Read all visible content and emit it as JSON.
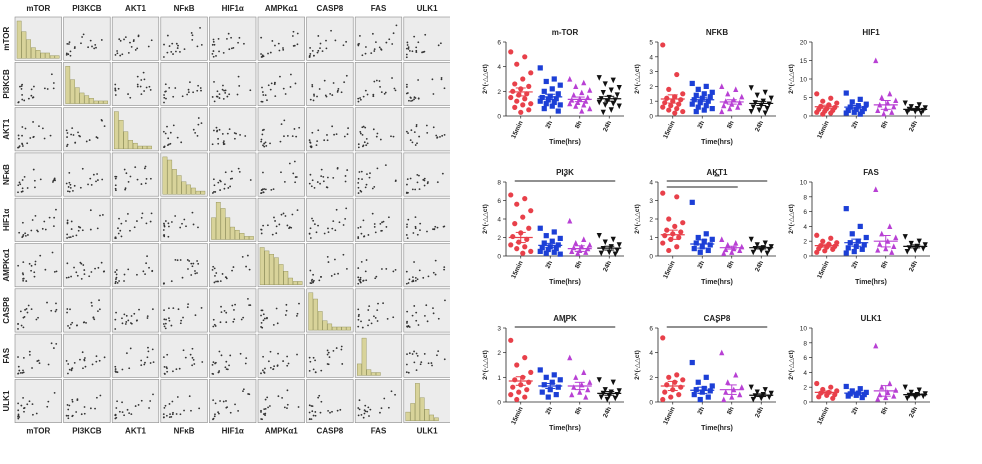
{
  "scatter_matrix": {
    "variables": [
      "mTOR",
      "PI3KCB",
      "AKT1",
      "NFκB",
      "HIF1α",
      "AMPKα1",
      "CASP8",
      "FAS",
      "ULK1"
    ],
    "histograms": [
      [
        14,
        10,
        7,
        4,
        3,
        2,
        2,
        1,
        1
      ],
      [
        14,
        9,
        6,
        4,
        3,
        2,
        1,
        1,
        1
      ],
      [
        13,
        10,
        6,
        3,
        2,
        1,
        1,
        1,
        0
      ],
      [
        12,
        11,
        8,
        6,
        4,
        3,
        2,
        1,
        1
      ],
      [
        7,
        12,
        10,
        7,
        4,
        3,
        2,
        1,
        1
      ],
      [
        11,
        10,
        9,
        8,
        6,
        4,
        2,
        1,
        1
      ],
      [
        12,
        10,
        6,
        3,
        2,
        1,
        1,
        1,
        1
      ],
      [
        4,
        13,
        2,
        1,
        1,
        0,
        0,
        0,
        0
      ],
      [
        3,
        6,
        13,
        8,
        4,
        2,
        1,
        0,
        0
      ]
    ],
    "hist_color": "#d8d39a"
  },
  "dot_plot_ylabel": "2^(-△△ct)",
  "chart_data": [
    {
      "type": "scatter",
      "title": "m-TOR",
      "xlabel": "Time(hrs)",
      "ylabel": "2^(-△△ct)",
      "categories": [
        "15min",
        "2h",
        "8h",
        "24h"
      ],
      "ylim": [
        0,
        6
      ],
      "yticks": [
        0,
        2,
        4,
        6
      ],
      "significance": [],
      "series": [
        {
          "values": [
            5.2,
            4.8,
            4.2,
            3.5,
            3.0,
            2.6,
            2.4,
            2.2,
            2.0,
            1.8,
            1.7,
            1.5,
            1.4,
            1.2,
            1.0,
            0.9,
            0.7,
            0.5,
            0.3
          ],
          "mean": 1.95,
          "color": "#e8404a",
          "marker": "circle"
        },
        {
          "values": [
            3.9,
            3.0,
            2.8,
            2.5,
            2.2,
            2.0,
            1.8,
            1.6,
            1.5,
            1.4,
            1.3,
            1.2,
            1.1,
            1.0,
            0.9,
            0.8,
            0.6,
            0.4
          ],
          "mean": 1.55,
          "color": "#1c3fd6",
          "marker": "square"
        },
        {
          "values": [
            3.0,
            2.7,
            2.4,
            2.1,
            1.9,
            1.7,
            1.5,
            1.4,
            1.3,
            1.2,
            1.1,
            1.0,
            0.9,
            0.8,
            0.6,
            0.4
          ],
          "mean": 1.35,
          "color": "#b840d4",
          "marker": "triangle"
        },
        {
          "values": [
            3.1,
            2.9,
            2.6,
            2.3,
            2.1,
            1.9,
            1.7,
            1.5,
            1.4,
            1.3,
            1.2,
            1.1,
            1.0,
            0.9,
            0.8,
            0.5,
            0.3
          ],
          "mean": 1.4,
          "color": "#111111",
          "marker": "tri-down"
        }
      ]
    },
    {
      "type": "scatter",
      "title": "NFKB",
      "xlabel": "Time(hrs)",
      "ylabel": "2^(-△△ct)",
      "categories": [
        "15min",
        "2h",
        "8h",
        "24h"
      ],
      "ylim": [
        0,
        5
      ],
      "yticks": [
        0,
        1,
        2,
        3,
        4,
        5
      ],
      "significance": [],
      "series": [
        {
          "values": [
            4.8,
            2.8,
            1.8,
            1.5,
            1.3,
            1.2,
            1.1,
            1.0,
            0.9,
            0.8,
            0.7,
            0.6,
            0.5,
            0.4,
            0.3,
            0.2
          ],
          "mean": 1.15,
          "color": "#e8404a",
          "marker": "circle"
        },
        {
          "values": [
            2.2,
            2.0,
            1.8,
            1.6,
            1.5,
            1.4,
            1.3,
            1.2,
            1.1,
            1.0,
            0.9,
            0.8,
            0.7,
            0.6,
            0.5,
            0.4,
            0.3
          ],
          "mean": 1.1,
          "color": "#1c3fd6",
          "marker": "square"
        },
        {
          "values": [
            2.0,
            1.8,
            1.5,
            1.3,
            1.1,
            1.0,
            0.9,
            0.8,
            0.7,
            0.6,
            0.5,
            0.3
          ],
          "mean": 0.95,
          "color": "#b840d4",
          "marker": "triangle"
        },
        {
          "values": [
            1.9,
            1.6,
            1.4,
            1.2,
            1.0,
            0.9,
            0.8,
            0.7,
            0.6,
            0.5,
            0.4,
            0.3,
            0.2
          ],
          "mean": 0.85,
          "color": "#111111",
          "marker": "tri-down"
        }
      ]
    },
    {
      "type": "scatter",
      "title": "HIF1",
      "xlabel": "",
      "ylabel": "2^(-△△ct)",
      "categories": [
        "15min",
        "2h",
        "8h",
        "24h"
      ],
      "ylim": [
        0,
        20
      ],
      "yticks": [
        0,
        5,
        10,
        15,
        20
      ],
      "significance": [],
      "series": [
        {
          "values": [
            6.0,
            4.8,
            4.0,
            3.5,
            3.0,
            2.6,
            2.3,
            2.0,
            1.8,
            1.5,
            1.3,
            1.0,
            0.8,
            0.5
          ],
          "mean": 2.5,
          "color": "#e8404a",
          "marker": "circle"
        },
        {
          "values": [
            6.2,
            4.5,
            3.8,
            3.2,
            2.8,
            2.4,
            2.0,
            1.8,
            1.5,
            1.2,
            1.0,
            0.8,
            0.5
          ],
          "mean": 2.4,
          "color": "#1c3fd6",
          "marker": "square"
        },
        {
          "values": [
            15.0,
            6.0,
            5.0,
            4.2,
            3.5,
            3.0,
            2.5,
            2.0,
            1.5,
            1.0,
            0.6
          ],
          "mean": 3.0,
          "color": "#b840d4",
          "marker": "triangle"
        },
        {
          "values": [
            3.5,
            3.0,
            2.5,
            2.2,
            2.0,
            1.8,
            1.5,
            1.2,
            1.0,
            0.8
          ],
          "mean": 1.8,
          "color": "#111111",
          "marker": "tri-down"
        }
      ]
    },
    {
      "type": "scatter",
      "title": "PI3K",
      "xlabel": "Time(hrs)",
      "ylabel": "2^(-△△ct)",
      "categories": [
        "15min",
        "2h",
        "8h",
        "24h"
      ],
      "ylim": [
        0,
        8
      ],
      "yticks": [
        0,
        2,
        4,
        6,
        8
      ],
      "significance": [
        {
          "from": 0,
          "to": 3,
          "label": "*"
        }
      ],
      "series": [
        {
          "values": [
            6.6,
            6.2,
            5.6,
            4.9,
            4.2,
            3.5,
            3.0,
            2.5,
            2.1,
            1.8,
            1.5,
            1.2,
            1.0,
            0.8,
            0.5,
            0.3
          ],
          "mean": 2.0,
          "color": "#e8404a",
          "marker": "circle"
        },
        {
          "values": [
            3.0,
            2.6,
            2.2,
            1.9,
            1.6,
            1.4,
            1.2,
            1.0,
            0.9,
            0.8,
            0.7,
            0.5,
            0.4,
            0.3,
            0.2
          ],
          "mean": 1.15,
          "color": "#1c3fd6",
          "marker": "square"
        },
        {
          "values": [
            3.8,
            1.8,
            1.4,
            1.2,
            1.0,
            0.9,
            0.8,
            0.6,
            0.5,
            0.4,
            0.3
          ],
          "mean": 0.8,
          "color": "#b840d4",
          "marker": "triangle"
        },
        {
          "values": [
            2.2,
            1.8,
            1.5,
            1.2,
            1.0,
            0.8,
            0.6,
            0.4,
            0.3,
            0.2
          ],
          "mean": 0.85,
          "color": "#111111",
          "marker": "tri-down"
        }
      ]
    },
    {
      "type": "scatter",
      "title": "AKT1",
      "xlabel": "Time(hrs)",
      "ylabel": "2^(-△△ct)",
      "categories": [
        "15min",
        "2h",
        "8h",
        "24h"
      ],
      "ylim": [
        0,
        4
      ],
      "yticks": [
        0,
        1,
        2,
        3,
        4
      ],
      "significance": [
        {
          "from": 0,
          "to": 3,
          "label": "**"
        },
        {
          "from": 0,
          "to": 2,
          "label": ""
        }
      ],
      "series": [
        {
          "values": [
            3.4,
            3.2,
            2.0,
            1.8,
            1.6,
            1.4,
            1.3,
            1.2,
            1.1,
            1.0,
            0.9,
            0.7,
            0.5,
            0.3
          ],
          "mean": 1.15,
          "color": "#e8404a",
          "marker": "circle"
        },
        {
          "values": [
            2.9,
            1.2,
            1.0,
            0.9,
            0.8,
            0.7,
            0.6,
            0.5,
            0.4,
            0.3,
            0.2
          ],
          "mean": 0.65,
          "color": "#1c3fd6",
          "marker": "square"
        },
        {
          "values": [
            0.9,
            0.7,
            0.6,
            0.5,
            0.4,
            0.35,
            0.3,
            0.2,
            0.15
          ],
          "mean": 0.45,
          "color": "#b840d4",
          "marker": "triangle"
        },
        {
          "values": [
            0.9,
            0.7,
            0.6,
            0.5,
            0.45,
            0.4,
            0.35,
            0.3,
            0.2,
            0.15
          ],
          "mean": 0.45,
          "color": "#111111",
          "marker": "tri-down"
        }
      ]
    },
    {
      "type": "scatter",
      "title": "FAS",
      "xlabel": "Time(hrs)",
      "ylabel": "2^(-△△ct)",
      "categories": [
        "15min",
        "2h",
        "8h",
        "24h"
      ],
      "ylim": [
        0,
        10
      ],
      "yticks": [
        0,
        2,
        4,
        6,
        8,
        10
      ],
      "significance": [],
      "series": [
        {
          "values": [
            2.8,
            2.4,
            2.0,
            1.8,
            1.6,
            1.4,
            1.3,
            1.2,
            1.0,
            0.9,
            0.7,
            0.5
          ],
          "mean": 1.4,
          "color": "#e8404a",
          "marker": "circle"
        },
        {
          "values": [
            6.4,
            4.0,
            3.0,
            2.5,
            2.0,
            1.8,
            1.5,
            1.3,
            1.1,
            0.9,
            0.6,
            0.4
          ],
          "mean": 1.8,
          "color": "#1c3fd6",
          "marker": "square"
        },
        {
          "values": [
            9.0,
            4.0,
            3.0,
            2.5,
            2.0,
            1.6,
            1.3,
            1.0,
            0.8,
            0.5
          ],
          "mean": 2.0,
          "color": "#b840d4",
          "marker": "triangle"
        },
        {
          "values": [
            2.6,
            2.0,
            1.7,
            1.5,
            1.3,
            1.1,
            1.0,
            0.8,
            0.6
          ],
          "mean": 1.3,
          "color": "#111111",
          "marker": "tri-down"
        }
      ]
    },
    {
      "type": "scatter",
      "title": "AMPK",
      "xlabel": "Time(hrs)",
      "ylabel": "2^(-△△ct)",
      "categories": [
        "15min",
        "2h",
        "8h",
        "24h"
      ],
      "ylim": [
        0,
        3
      ],
      "yticks": [
        0,
        1,
        2,
        3
      ],
      "significance": [
        {
          "from": 0,
          "to": 3,
          "label": "*"
        }
      ],
      "series": [
        {
          "values": [
            2.5,
            1.8,
            1.5,
            1.2,
            1.0,
            0.9,
            0.8,
            0.7,
            0.6,
            0.5,
            0.4,
            0.3,
            0.2,
            0.1
          ],
          "mean": 0.85,
          "color": "#e8404a",
          "marker": "circle"
        },
        {
          "values": [
            1.3,
            1.1,
            1.0,
            0.9,
            0.8,
            0.7,
            0.6,
            0.5,
            0.4,
            0.3,
            0.2
          ],
          "mean": 0.65,
          "color": "#1c3fd6",
          "marker": "square"
        },
        {
          "values": [
            1.8,
            1.2,
            1.0,
            0.8,
            0.7,
            0.6,
            0.5,
            0.4,
            0.3,
            0.2
          ],
          "mean": 0.65,
          "color": "#b840d4",
          "marker": "triangle"
        },
        {
          "values": [
            0.9,
            0.8,
            0.5,
            0.45,
            0.4,
            0.35,
            0.3,
            0.25,
            0.2,
            0.15,
            0.1
          ],
          "mean": 0.35,
          "color": "#111111",
          "marker": "tri-down"
        }
      ]
    },
    {
      "type": "scatter",
      "title": "CASP8",
      "xlabel": "Time(hrs)",
      "ylabel": "2^(-△△ct)",
      "categories": [
        "15min",
        "2h",
        "8h",
        "24h"
      ],
      "ylim": [
        0,
        6
      ],
      "yticks": [
        0,
        2,
        4,
        6
      ],
      "significance": [
        {
          "from": 0,
          "to": 3,
          "label": "*"
        }
      ],
      "series": [
        {
          "values": [
            5.2,
            2.2,
            2.0,
            1.8,
            1.6,
            1.4,
            1.2,
            1.0,
            0.8,
            0.6,
            0.4,
            0.2
          ],
          "mean": 1.3,
          "color": "#e8404a",
          "marker": "circle"
        },
        {
          "values": [
            3.2,
            2.0,
            1.6,
            1.3,
            1.1,
            1.0,
            0.9,
            0.8,
            0.6,
            0.4,
            0.2
          ],
          "mean": 0.95,
          "color": "#1c3fd6",
          "marker": "square"
        },
        {
          "values": [
            4.0,
            2.2,
            1.6,
            1.2,
            1.0,
            0.8,
            0.6,
            0.4,
            0.2
          ],
          "mean": 1.0,
          "color": "#b840d4",
          "marker": "triangle"
        },
        {
          "values": [
            1.2,
            1.0,
            0.8,
            0.7,
            0.6,
            0.5,
            0.4,
            0.3,
            0.2
          ],
          "mean": 0.55,
          "color": "#111111",
          "marker": "tri-down"
        }
      ]
    },
    {
      "type": "scatter",
      "title": "ULK1",
      "xlabel": "",
      "ylabel": "2^(-△△ct)",
      "categories": [
        "15min",
        "2h",
        "8h",
        "24h"
      ],
      "ylim": [
        0,
        10
      ],
      "yticks": [
        0,
        2,
        4,
        6,
        8,
        10
      ],
      "significance": [],
      "series": [
        {
          "values": [
            2.5,
            2.0,
            1.7,
            1.5,
            1.3,
            1.2,
            1.0,
            0.9,
            0.7,
            0.5
          ],
          "mean": 1.3,
          "color": "#e8404a",
          "marker": "circle"
        },
        {
          "values": [
            2.1,
            1.8,
            1.5,
            1.3,
            1.2,
            1.1,
            1.0,
            0.9,
            0.8,
            0.6
          ],
          "mean": 1.2,
          "color": "#1c3fd6",
          "marker": "square"
        },
        {
          "values": [
            7.6,
            2.5,
            2.0,
            1.6,
            1.3,
            1.0,
            0.8,
            0.6,
            0.4
          ],
          "mean": 1.5,
          "color": "#b840d4",
          "marker": "triangle"
        },
        {
          "values": [
            2.0,
            1.6,
            1.3,
            1.1,
            1.0,
            0.9,
            0.8,
            0.6,
            0.5
          ],
          "mean": 1.0,
          "color": "#111111",
          "marker": "tri-down"
        }
      ]
    }
  ]
}
